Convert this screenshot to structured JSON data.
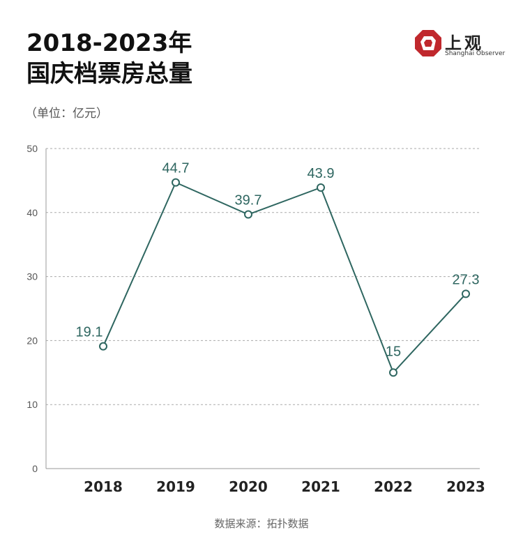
{
  "title_lines": [
    "2018-2023年",
    "国庆档票房总量"
  ],
  "unit_label": "（单位：亿元）",
  "logo": {
    "cn": "上观",
    "en": "Shanghai Observer",
    "color": "#c0282d"
  },
  "source_label": "数据来源：拓扑数据",
  "colors": {
    "line": "#2e6660",
    "label": "#2e6660",
    "grid": "#aaaaaa"
  },
  "chart_data": {
    "type": "line",
    "categories": [
      "2018",
      "2019",
      "2020",
      "2021",
      "2022",
      "2023"
    ],
    "values": [
      19.1,
      44.7,
      39.7,
      43.9,
      15,
      27.3
    ],
    "value_labels": [
      "19.1",
      "44.7",
      "39.7",
      "43.9",
      "15",
      "27.3"
    ],
    "yticks": [
      "0",
      "10",
      "20",
      "30",
      "40",
      "50"
    ],
    "ylim": [
      0,
      50
    ],
    "grid": true
  }
}
